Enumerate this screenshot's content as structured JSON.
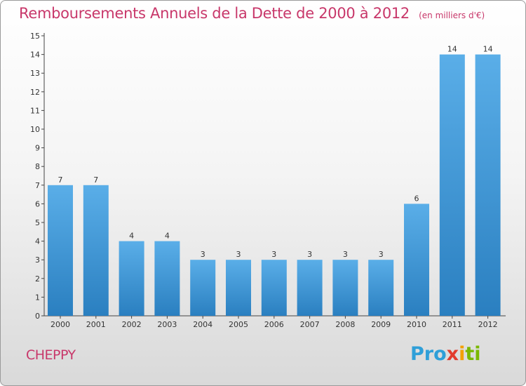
{
  "chart_data": {
    "type": "bar",
    "title": "Remboursements Annuels de la Dette de 2000 à 2012",
    "subtitle": "(en milliers d'€)",
    "categories": [
      "2000",
      "2001",
      "2002",
      "2003",
      "2004",
      "2005",
      "2006",
      "2007",
      "2008",
      "2009",
      "2010",
      "2011",
      "2012"
    ],
    "values": [
      7,
      7,
      4,
      4,
      3,
      3,
      3,
      3,
      3,
      3,
      6,
      14,
      14
    ],
    "yticks": [
      "0",
      "1",
      "2",
      "3",
      "4",
      "5",
      "6",
      "7",
      "8",
      "9",
      "10",
      "11",
      "12",
      "13",
      "14",
      "15"
    ],
    "ylim": [
      0,
      15
    ],
    "grid": false,
    "bar_color_top": "#5aaee8",
    "bar_color_bottom": "#2a7fc0"
  },
  "footer": {
    "commune": "CHEPPY",
    "logo_parts": [
      "Pro",
      "x",
      "i",
      "ti"
    ]
  }
}
